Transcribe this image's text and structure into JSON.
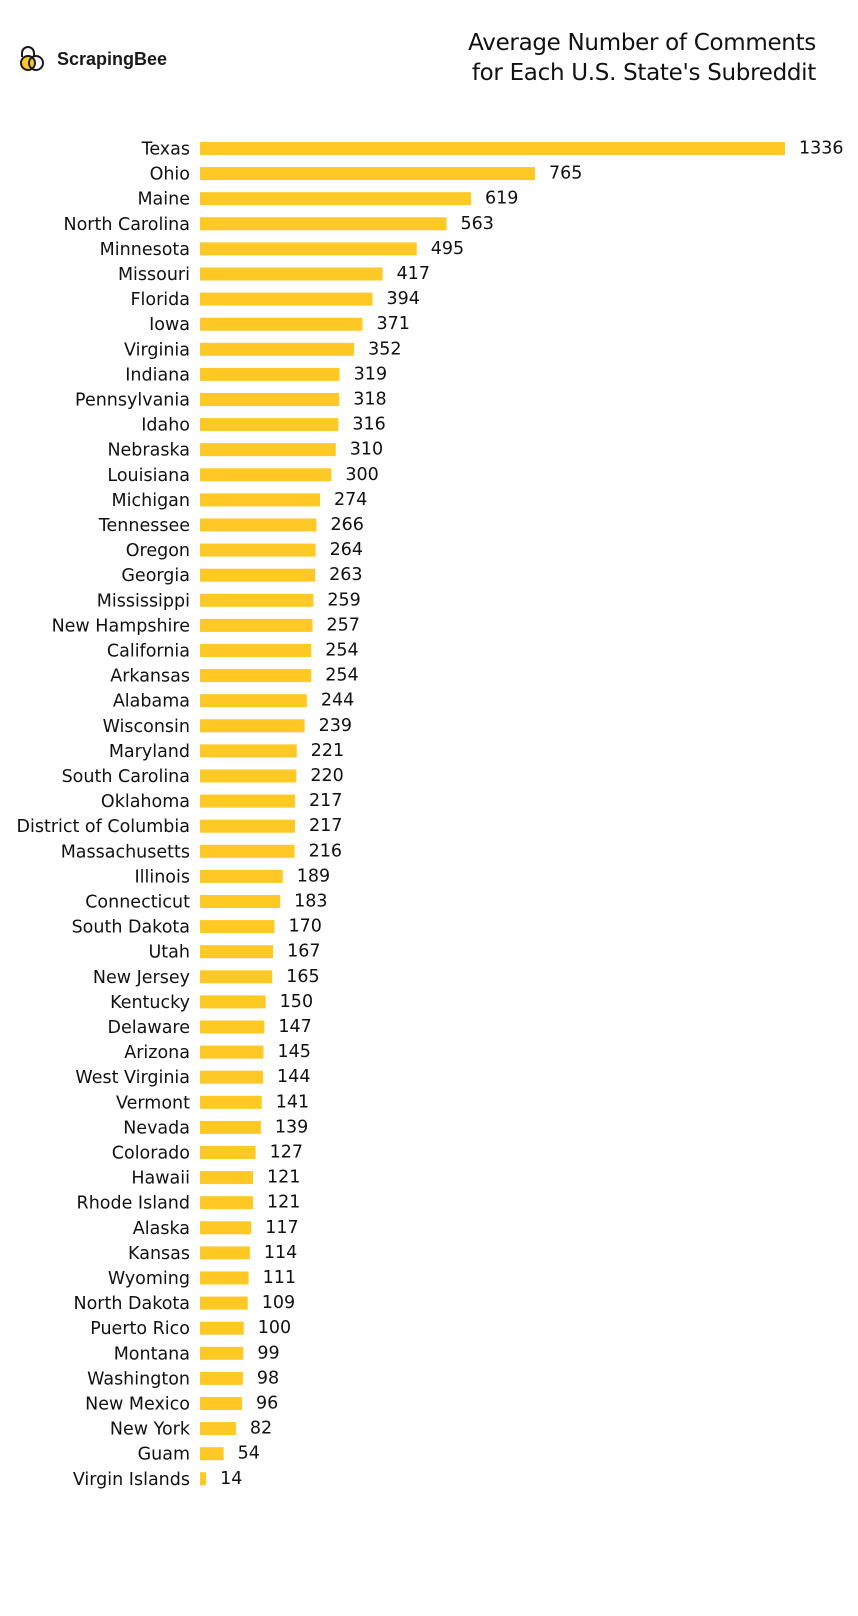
{
  "brand": {
    "name": "ScrapingBee",
    "logo_colors": [
      "#1a1a1a",
      "#fec825"
    ]
  },
  "chart_data": {
    "type": "bar",
    "orientation": "horizontal",
    "title": "Average Number of Comments for Each U.S. State's Subreddit",
    "title_lines": [
      "Average Number of Comments",
      "for Each U.S. State's Subreddit"
    ],
    "xlabel": "",
    "ylabel": "",
    "grid": false,
    "bar_color": "#fec825",
    "xlim": [
      0,
      1336
    ],
    "categories": [
      "Texas",
      "Ohio",
      "Maine",
      "North Carolina",
      "Minnesota",
      "Missouri",
      "Florida",
      "Iowa",
      "Virginia",
      "Indiana",
      "Pennsylvania",
      "Idaho",
      "Nebraska",
      "Louisiana",
      "Michigan",
      "Tennessee",
      "Oregon",
      "Georgia",
      "Mississippi",
      "New Hampshire",
      "California",
      "Arkansas",
      "Alabama",
      "Wisconsin",
      "Maryland",
      "South Carolina",
      "Oklahoma",
      "District of Columbia",
      "Massachusetts",
      "Illinois",
      "Connecticut",
      "South Dakota",
      "Utah",
      "New Jersey",
      "Kentucky",
      "Delaware",
      "Arizona",
      "West Virginia",
      "Vermont",
      "Nevada",
      "Colorado",
      "Hawaii",
      "Rhode Island",
      "Alaska",
      "Kansas",
      "Wyoming",
      "North Dakota",
      "Puerto Rico",
      "Montana",
      "Washington",
      "New Mexico",
      "New York",
      "Guam",
      "Virgin Islands"
    ],
    "values": [
      1336,
      765,
      619,
      563,
      495,
      417,
      394,
      371,
      352,
      319,
      318,
      316,
      310,
      300,
      274,
      266,
      264,
      263,
      259,
      257,
      254,
      254,
      244,
      239,
      221,
      220,
      217,
      217,
      216,
      189,
      183,
      170,
      167,
      165,
      150,
      147,
      145,
      144,
      141,
      139,
      127,
      121,
      121,
      117,
      114,
      111,
      109,
      100,
      99,
      98,
      96,
      82,
      54,
      14
    ]
  }
}
